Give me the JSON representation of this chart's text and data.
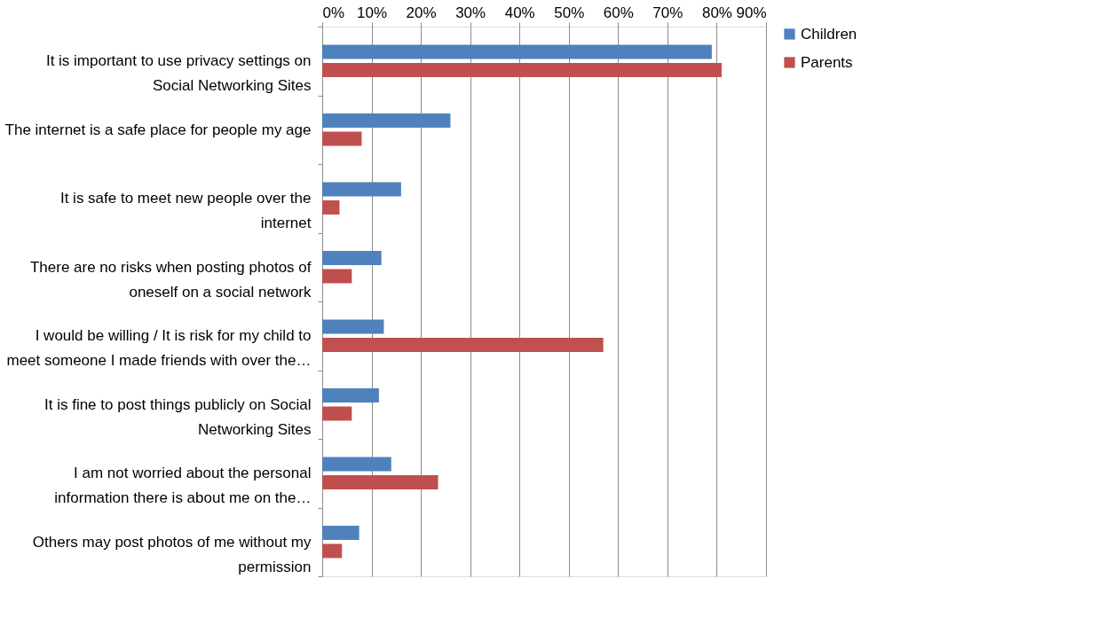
{
  "chart_data": {
    "type": "bar",
    "orientation": "horizontal",
    "categories": [
      "It is important to use privacy settings on\nSocial Networking Sites",
      "The internet is a safe place for people my age",
      "It is safe to meet new people over the\ninternet",
      "There are no risks when posting photos of\noneself on a social network",
      "I would be willing / It is risk for my child to\nmeet someone I made friends with over the…",
      "It is fine to post things publicly on Social\nNetworking Sites",
      "I am not worried about the personal\ninformation there is about me on the…",
      "Others may post photos of me without my\npermission"
    ],
    "series": [
      {
        "name": "Children",
        "color": "#4f81bd",
        "values": [
          79,
          26,
          16,
          12,
          12.5,
          11.5,
          14,
          7.5
        ]
      },
      {
        "name": "Parents",
        "color": "#c0504d",
        "values": [
          81,
          8,
          3.5,
          6,
          57,
          6,
          23.5,
          4
        ]
      }
    ],
    "xlim": [
      0,
      90
    ],
    "xticks": [
      {
        "value": 0,
        "label": "0%"
      },
      {
        "value": 10,
        "label": "10%"
      },
      {
        "value": 20,
        "label": "20%"
      },
      {
        "value": 30,
        "label": "30%"
      },
      {
        "value": 40,
        "label": "40%"
      },
      {
        "value": 50,
        "label": "50%"
      },
      {
        "value": 60,
        "label": "60%"
      },
      {
        "value": 70,
        "label": "70%"
      },
      {
        "value": 80,
        "label": "80%"
      },
      {
        "value": 90,
        "label": "90%"
      }
    ],
    "grid": "x",
    "legend": "right"
  }
}
